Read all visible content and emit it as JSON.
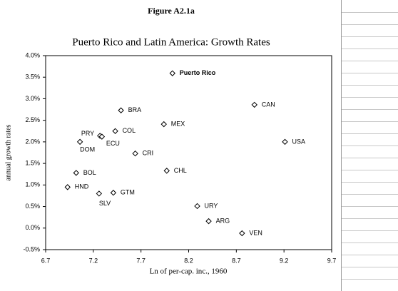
{
  "chart_data": {
    "type": "scatter",
    "figure_label": "Figure A2.1a",
    "title": "Puerto Rico and Latin America: Growth Rates",
    "x_label": "Ln of per-cap. inc., 1960",
    "y_label": "annual growth rates",
    "labels": [
      "Puerto Rico",
      "CAN",
      "BRA",
      "MEX",
      "COL",
      "PRY",
      "ECU",
      "DOM",
      "USA",
      "CRI",
      "CHL",
      "BOL",
      "HND",
      "GTM",
      "SLV",
      "URY",
      "ARG",
      "VEN"
    ],
    "x": [
      8.03,
      8.89,
      7.49,
      7.94,
      7.43,
      7.27,
      7.29,
      7.06,
      9.21,
      7.64,
      7.97,
      7.02,
      6.93,
      7.41,
      7.26,
      8.29,
      8.41,
      8.76
    ],
    "values": [
      3.59,
      2.86,
      2.73,
      2.41,
      2.25,
      2.14,
      2.12,
      2.0,
      2.0,
      1.73,
      1.33,
      1.28,
      0.95,
      0.82,
      0.8,
      0.51,
      0.16,
      -0.12
    ],
    "xlim": [
      6.7,
      9.7
    ],
    "xticks": [
      6.7,
      7.2,
      7.7,
      8.2,
      8.7,
      9.2,
      9.7
    ],
    "ylim": [
      -0.5,
      4.0
    ],
    "yticks": [
      {
        "value": -0.5,
        "label": "-0.5%"
      },
      {
        "value": 0,
        "label": "0.0%"
      },
      {
        "value": 0.5,
        "label": "0.5%"
      },
      {
        "value": 1,
        "label": "1.0%"
      },
      {
        "value": 1.5,
        "label": "1.5%"
      },
      {
        "value": 2,
        "label": "2.0%"
      },
      {
        "value": 2.5,
        "label": "2.5%"
      },
      {
        "value": 3,
        "label": "3.0%"
      },
      {
        "value": 3.5,
        "label": "3.5%"
      },
      {
        "value": 4,
        "label": "4.0%"
      }
    ],
    "color": "#000000"
  }
}
